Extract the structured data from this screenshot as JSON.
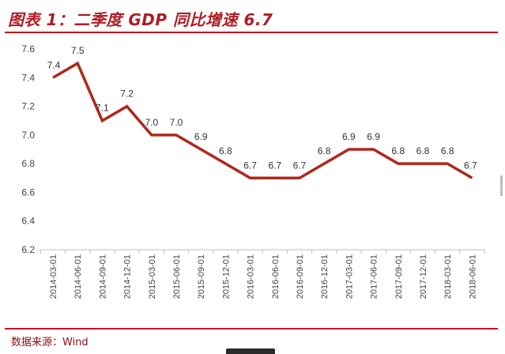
{
  "header": {
    "title": "图表 1：二季度 GDP 同比增速 6.7"
  },
  "footer": {
    "source": "数据来源：Wind"
  },
  "colors": {
    "title": "#b01c24",
    "rule": "#c0151d",
    "series_line": "#b0271b",
    "source": "#8b0c12"
  },
  "chart_data": {
    "type": "line",
    "title": "",
    "xlabel": "",
    "ylabel": "",
    "ylim": [
      6.2,
      7.6
    ],
    "yticks": [
      "7.6",
      "7.4",
      "7.2",
      "7.0",
      "6.8",
      "6.6",
      "6.4",
      "6.2"
    ],
    "grid": false,
    "legend": "none",
    "categories": [
      "2014-03-01",
      "2014-06-01",
      "2014-09-01",
      "2014-12-01",
      "2015-03-01",
      "2015-06-01",
      "2015-09-01",
      "2015-12-01",
      "2016-03-01",
      "2016-06-01",
      "2016-09-01",
      "2016-12-01",
      "2017-03-01",
      "2017-06-01",
      "2017-09-01",
      "2017-12-01",
      "2018-03-01",
      "2018-06-01"
    ],
    "series": [
      {
        "values": [
          7.4,
          7.5,
          7.1,
          7.2,
          7.0,
          7.0,
          6.9,
          6.8,
          6.7,
          6.7,
          6.7,
          6.8,
          6.9,
          6.9,
          6.8,
          6.8,
          6.8,
          6.7
        ],
        "data_labels": [
          "7.4",
          "7.5",
          "7.1",
          "7.2",
          "7.0",
          "7.0",
          "6.9",
          "6.8",
          "6.7",
          "6.7",
          "6.7",
          "6.8",
          "6.9",
          "6.9",
          "6.8",
          "6.8",
          "6.8",
          "6.7"
        ]
      }
    ]
  }
}
